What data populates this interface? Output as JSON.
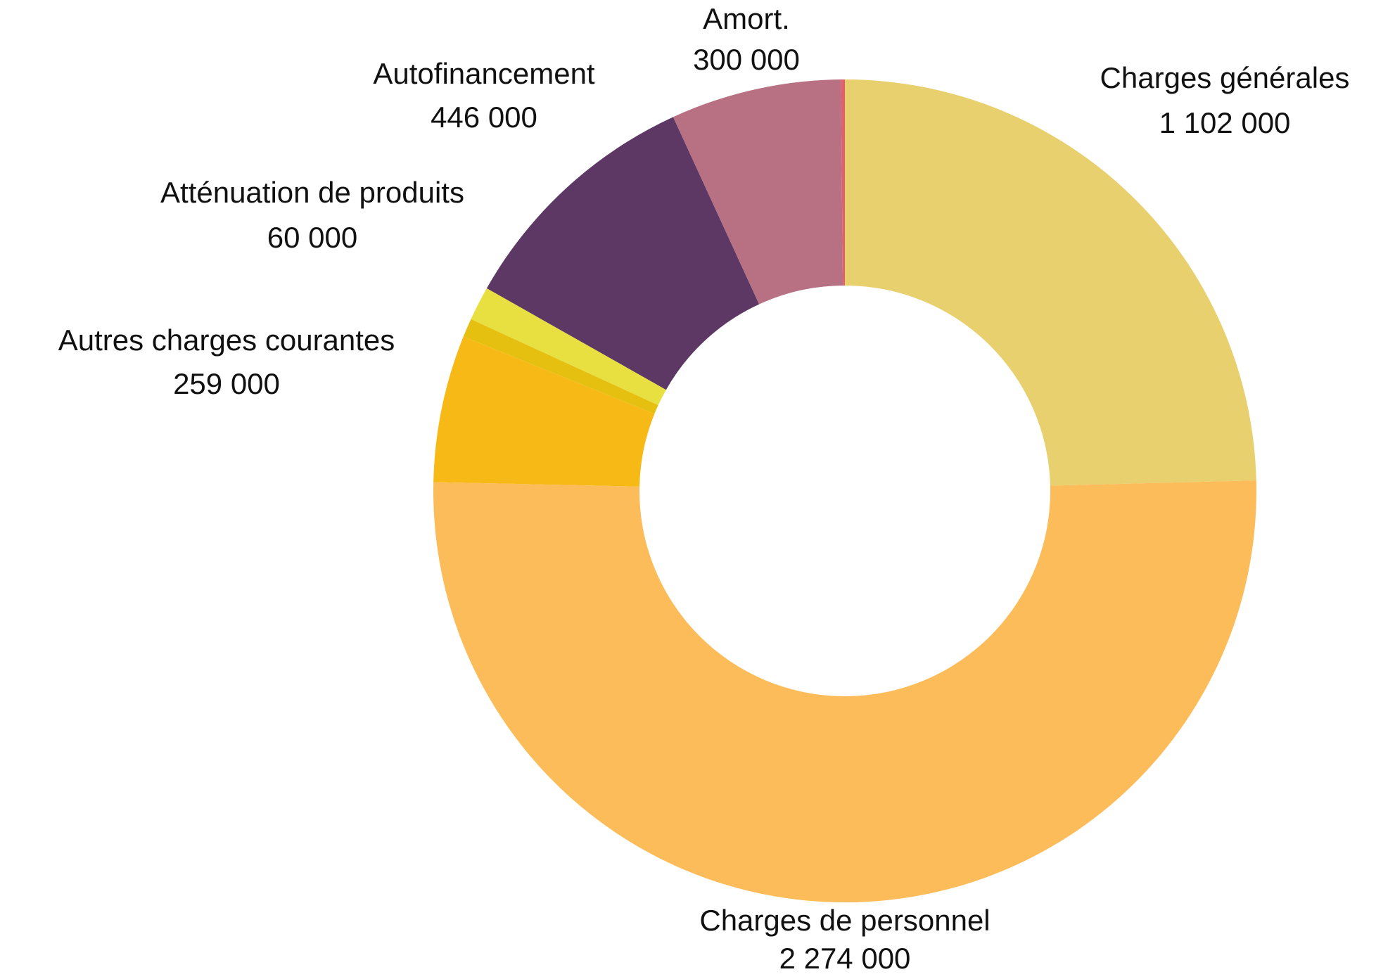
{
  "chart_data": {
    "type": "donut",
    "categories": [
      "Charges générales",
      "Charges de personnel",
      "Autres charges courantes",
      null,
      "Atténuation de produits",
      "Autofinancement",
      "Amort.",
      null
    ],
    "values": [
      1102000,
      2274000,
      259000,
      33000,
      60000,
      446000,
      300000,
      7000
    ],
    "value_labels": [
      "1 102 000",
      "2 274 000",
      "259 000",
      null,
      "60 000",
      "446 000",
      "300 000",
      null
    ],
    "colors": [
      "#e8d06e",
      "#fdbc5a",
      "#f7b916",
      "#e6c010",
      "#e8e040",
      "#5d3865",
      "#b87083",
      "#e06070"
    ]
  }
}
